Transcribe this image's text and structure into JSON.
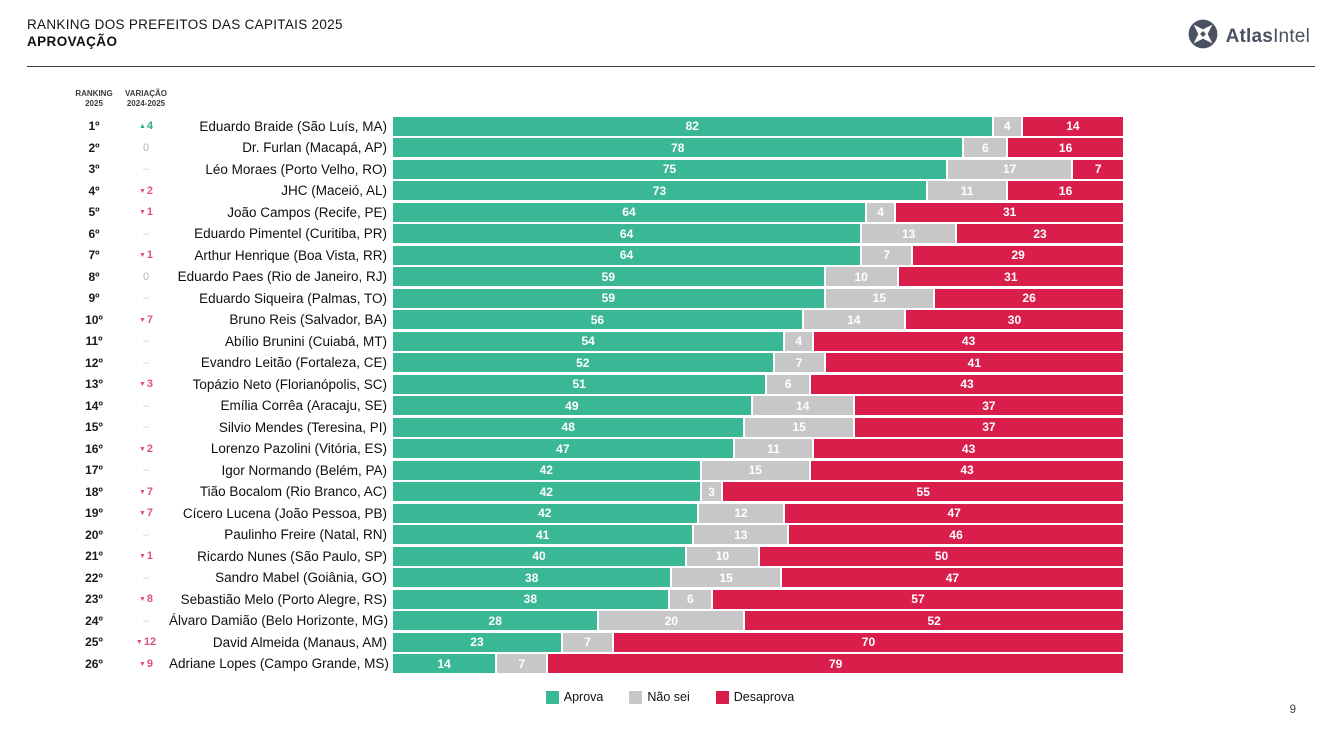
{
  "header": {
    "title_line1": "RANKING DOS PREFEITOS DAS CAPITAIS 2025",
    "title_line2": "APROVAÇÃO",
    "logo": {
      "bold": "Atlas",
      "light": "Intel",
      "color": "#4a5160"
    }
  },
  "columns": {
    "ranking_line1": "RANKING",
    "ranking_line2": "2025",
    "variation_line1": "VARIAÇÃO",
    "variation_line2": "2024-2025"
  },
  "colors": {
    "series": [
      "#3ab795",
      "#c7c7c7",
      "#d91e4c"
    ],
    "variation_up": "#2aa883",
    "variation_down": "#e0527a"
  },
  "legend": [
    {
      "label": "Aprova",
      "color": "#3ab795"
    },
    {
      "label": "Não sei",
      "color": "#c7c7c7"
    },
    {
      "label": "Desaprova",
      "color": "#d91e4c"
    }
  ],
  "page_number": "9",
  "chart_data": {
    "type": "bar",
    "orientation": "horizontal",
    "stacked": true,
    "title": "RANKING DOS PREFEITOS DAS CAPITAIS 2025 — APROVAÇÃO",
    "xlim": [
      0,
      100
    ],
    "legend_position": "bottom",
    "series_names": [
      "Aprova",
      "Não sei",
      "Desaprova"
    ],
    "series_keys": [
      "aprova",
      "nao-sei",
      "desaprova"
    ],
    "rows": [
      {
        "rank": "1º",
        "variation": {
          "text": "4",
          "dir": "up"
        },
        "name": "Eduardo Braide (São Luís, MA)",
        "values": [
          82,
          4,
          14
        ]
      },
      {
        "rank": "2º",
        "variation": {
          "text": "0",
          "dir": "zero"
        },
        "name": "Dr. Furlan (Macapá, AP)",
        "values": [
          78,
          6,
          16
        ]
      },
      {
        "rank": "3º",
        "variation": {
          "text": "–",
          "dir": "none"
        },
        "name": "Léo Moraes (Porto Velho, RO)",
        "values": [
          75,
          17,
          7
        ]
      },
      {
        "rank": "4º",
        "variation": {
          "text": "2",
          "dir": "down"
        },
        "name": "JHC (Maceió, AL)",
        "values": [
          73,
          11,
          16
        ]
      },
      {
        "rank": "5º",
        "variation": {
          "text": "1",
          "dir": "down"
        },
        "name": "João Campos (Recife, PE)",
        "values": [
          64,
          4,
          31
        ]
      },
      {
        "rank": "6º",
        "variation": {
          "text": "–",
          "dir": "none"
        },
        "name": "Eduardo Pimentel (Curitiba, PR)",
        "values": [
          64,
          13,
          23
        ]
      },
      {
        "rank": "7º",
        "variation": {
          "text": "1",
          "dir": "down"
        },
        "name": "Arthur Henrique (Boa Vista, RR)",
        "values": [
          64,
          7,
          29
        ]
      },
      {
        "rank": "8º",
        "variation": {
          "text": "0",
          "dir": "zero"
        },
        "name": "Eduardo Paes (Rio de Janeiro, RJ)",
        "values": [
          59,
          10,
          31
        ]
      },
      {
        "rank": "9º",
        "variation": {
          "text": "–",
          "dir": "none"
        },
        "name": "Eduardo Siqueira (Palmas, TO)",
        "values": [
          59,
          15,
          26
        ]
      },
      {
        "rank": "10º",
        "variation": {
          "text": "7",
          "dir": "down"
        },
        "name": "Bruno Reis (Salvador, BA)",
        "values": [
          56,
          14,
          30
        ]
      },
      {
        "rank": "11º",
        "variation": {
          "text": "–",
          "dir": "none"
        },
        "name": "Abílio Brunini (Cuiabá, MT)",
        "values": [
          54,
          4,
          43
        ]
      },
      {
        "rank": "12º",
        "variation": {
          "text": "–",
          "dir": "none"
        },
        "name": "Evandro Leitão (Fortaleza, CE)",
        "values": [
          52,
          7,
          41
        ]
      },
      {
        "rank": "13º",
        "variation": {
          "text": "3",
          "dir": "down"
        },
        "name": "Topázio Neto (Florianópolis, SC)",
        "values": [
          51,
          6,
          43
        ]
      },
      {
        "rank": "14º",
        "variation": {
          "text": "–",
          "dir": "none"
        },
        "name": "Emília Corrêa (Aracaju, SE)",
        "values": [
          49,
          14,
          37
        ]
      },
      {
        "rank": "15º",
        "variation": {
          "text": "–",
          "dir": "none"
        },
        "name": "Silvio Mendes (Teresina, PI)",
        "values": [
          48,
          15,
          37
        ]
      },
      {
        "rank": "16º",
        "variation": {
          "text": "2",
          "dir": "down"
        },
        "name": "Lorenzo Pazolini (Vitória, ES)",
        "values": [
          47,
          11,
          43
        ]
      },
      {
        "rank": "17º",
        "variation": {
          "text": "–",
          "dir": "none"
        },
        "name": "Igor Normando (Belém, PA)",
        "values": [
          42,
          15,
          43
        ]
      },
      {
        "rank": "18º",
        "variation": {
          "text": "7",
          "dir": "down"
        },
        "name": "Tião Bocalom (Rio Branco, AC)",
        "values": [
          42,
          3,
          55
        ]
      },
      {
        "rank": "19º",
        "variation": {
          "text": "7",
          "dir": "down"
        },
        "name": "Cícero Lucena (João Pessoa, PB)",
        "values": [
          42,
          12,
          47
        ]
      },
      {
        "rank": "20º",
        "variation": {
          "text": "–",
          "dir": "none"
        },
        "name": "Paulinho Freire (Natal, RN)",
        "values": [
          41,
          13,
          46
        ]
      },
      {
        "rank": "21º",
        "variation": {
          "text": "1",
          "dir": "down"
        },
        "name": "Ricardo Nunes (São Paulo, SP)",
        "values": [
          40,
          10,
          50
        ]
      },
      {
        "rank": "22º",
        "variation": {
          "text": "–",
          "dir": "none"
        },
        "name": "Sandro Mabel (Goiânia, GO)",
        "values": [
          38,
          15,
          47
        ]
      },
      {
        "rank": "23º",
        "variation": {
          "text": "8",
          "dir": "down"
        },
        "name": "Sebastião Melo (Porto Alegre, RS)",
        "values": [
          38,
          6,
          57
        ]
      },
      {
        "rank": "24º",
        "variation": {
          "text": "–",
          "dir": "none"
        },
        "name": "Álvaro Damião (Belo Horizonte, MG)",
        "values": [
          28,
          20,
          52
        ]
      },
      {
        "rank": "25º",
        "variation": {
          "text": "12",
          "dir": "down"
        },
        "name": "David Almeida (Manaus, AM)",
        "values": [
          23,
          7,
          70
        ]
      },
      {
        "rank": "26º",
        "variation": {
          "text": "9",
          "dir": "down"
        },
        "name": "Adriane Lopes (Campo Grande, MS)",
        "values": [
          14,
          7,
          79
        ]
      }
    ]
  }
}
